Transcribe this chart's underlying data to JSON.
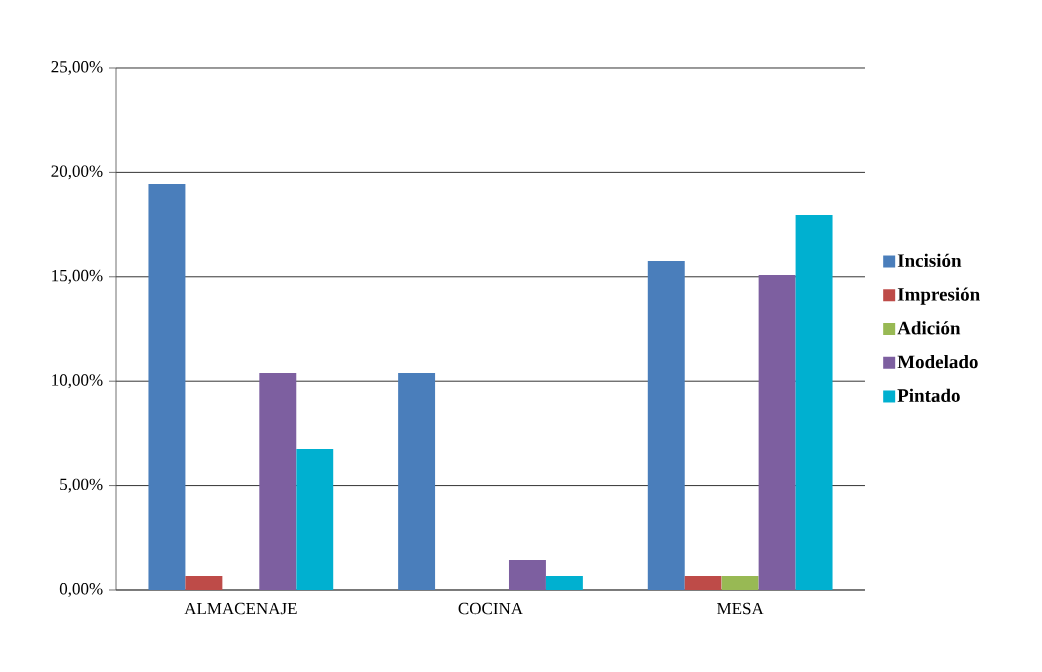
{
  "chart_data": {
    "type": "bar",
    "categories": [
      "ALMACENAJE",
      "COCINA",
      "MESA"
    ],
    "series": [
      {
        "name": "Incisión",
        "color": "#4a7ebb",
        "values": [
          19.44,
          10.39,
          15.76
        ]
      },
      {
        "name": "Impresión",
        "color": "#be4b48",
        "values": [
          0.67,
          0,
          0.67
        ]
      },
      {
        "name": "Adición",
        "color": "#98b954",
        "values": [
          0,
          0,
          0.67
        ]
      },
      {
        "name": "Modelado",
        "color": "#7d5fa0",
        "values": [
          10.39,
          1.44,
          15.09
        ]
      },
      {
        "name": "Pintado",
        "color": "#00b0d0",
        "values": [
          6.75,
          0.67,
          17.96
        ]
      }
    ],
    "ylim": [
      0,
      25
    ],
    "yticks": [
      {
        "value": 0,
        "label": "0,00%"
      },
      {
        "value": 5,
        "label": "5,00%"
      },
      {
        "value": 10,
        "label": "10,00%"
      },
      {
        "value": 15,
        "label": "15,00%"
      },
      {
        "value": 20,
        "label": "20,00%"
      },
      {
        "value": 25,
        "label": "25,00%"
      }
    ],
    "grid": "y",
    "legend": "right"
  }
}
